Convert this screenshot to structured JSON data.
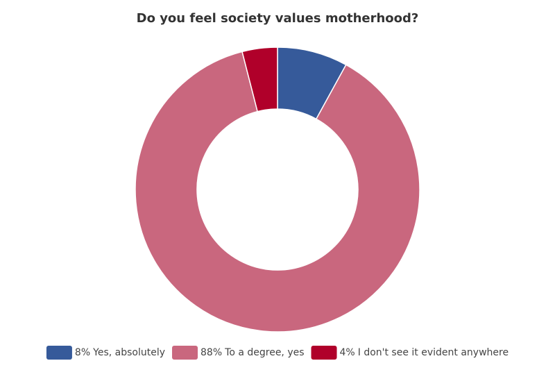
{
  "chart_data": {
    "type": "donut",
    "title": "Do you feel society values motherhood?",
    "categories": [
      "Yes, absolutely",
      "To a degree, yes",
      "I don't see it evident anywhere"
    ],
    "values": [
      8,
      88,
      4
    ],
    "value_labels": [
      "8%",
      "88%",
      "4%"
    ],
    "colors": [
      "#365a9a",
      "#c9677e",
      "#b0002a"
    ],
    "legend": "bottom"
  }
}
